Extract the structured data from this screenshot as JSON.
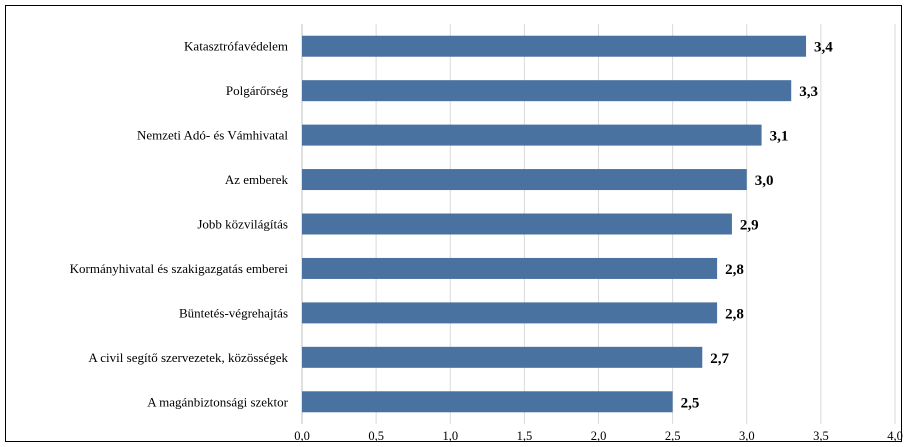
{
  "chart_data": {
    "type": "bar",
    "orientation": "horizontal",
    "categories": [
      "Katasztrófavédelem",
      "Polgárőrség",
      "Nemzeti Adó- és Vámhivatal",
      "Az emberek",
      "Jobb közvilágítás",
      "Kormányhivatal és szakigazgatás emberei",
      "Büntetés-végrehajtás",
      "A civil segítő szervezetek, közösségek",
      "A magánbiztonsági szektor"
    ],
    "values": [
      3.4,
      3.3,
      3.1,
      3.0,
      2.9,
      2.8,
      2.8,
      2.7,
      2.5
    ],
    "data_labels": [
      "3,4",
      "3,3",
      "3,1",
      "3,0",
      "2,9",
      "2,8",
      "2,8",
      "2,7",
      "2,5"
    ],
    "xlim": [
      0,
      4
    ],
    "x_ticks": [
      0,
      0.5,
      1,
      1.5,
      2,
      2.5,
      3,
      3.5,
      4
    ],
    "x_tick_labels": [
      "0,0",
      "0,5",
      "1,0",
      "1,5",
      "2,0",
      "2,5",
      "3,0",
      "3,5",
      "4,0"
    ],
    "grid": true,
    "bar_color": "#4a72a0",
    "grid_color": "#d9d9d9"
  }
}
